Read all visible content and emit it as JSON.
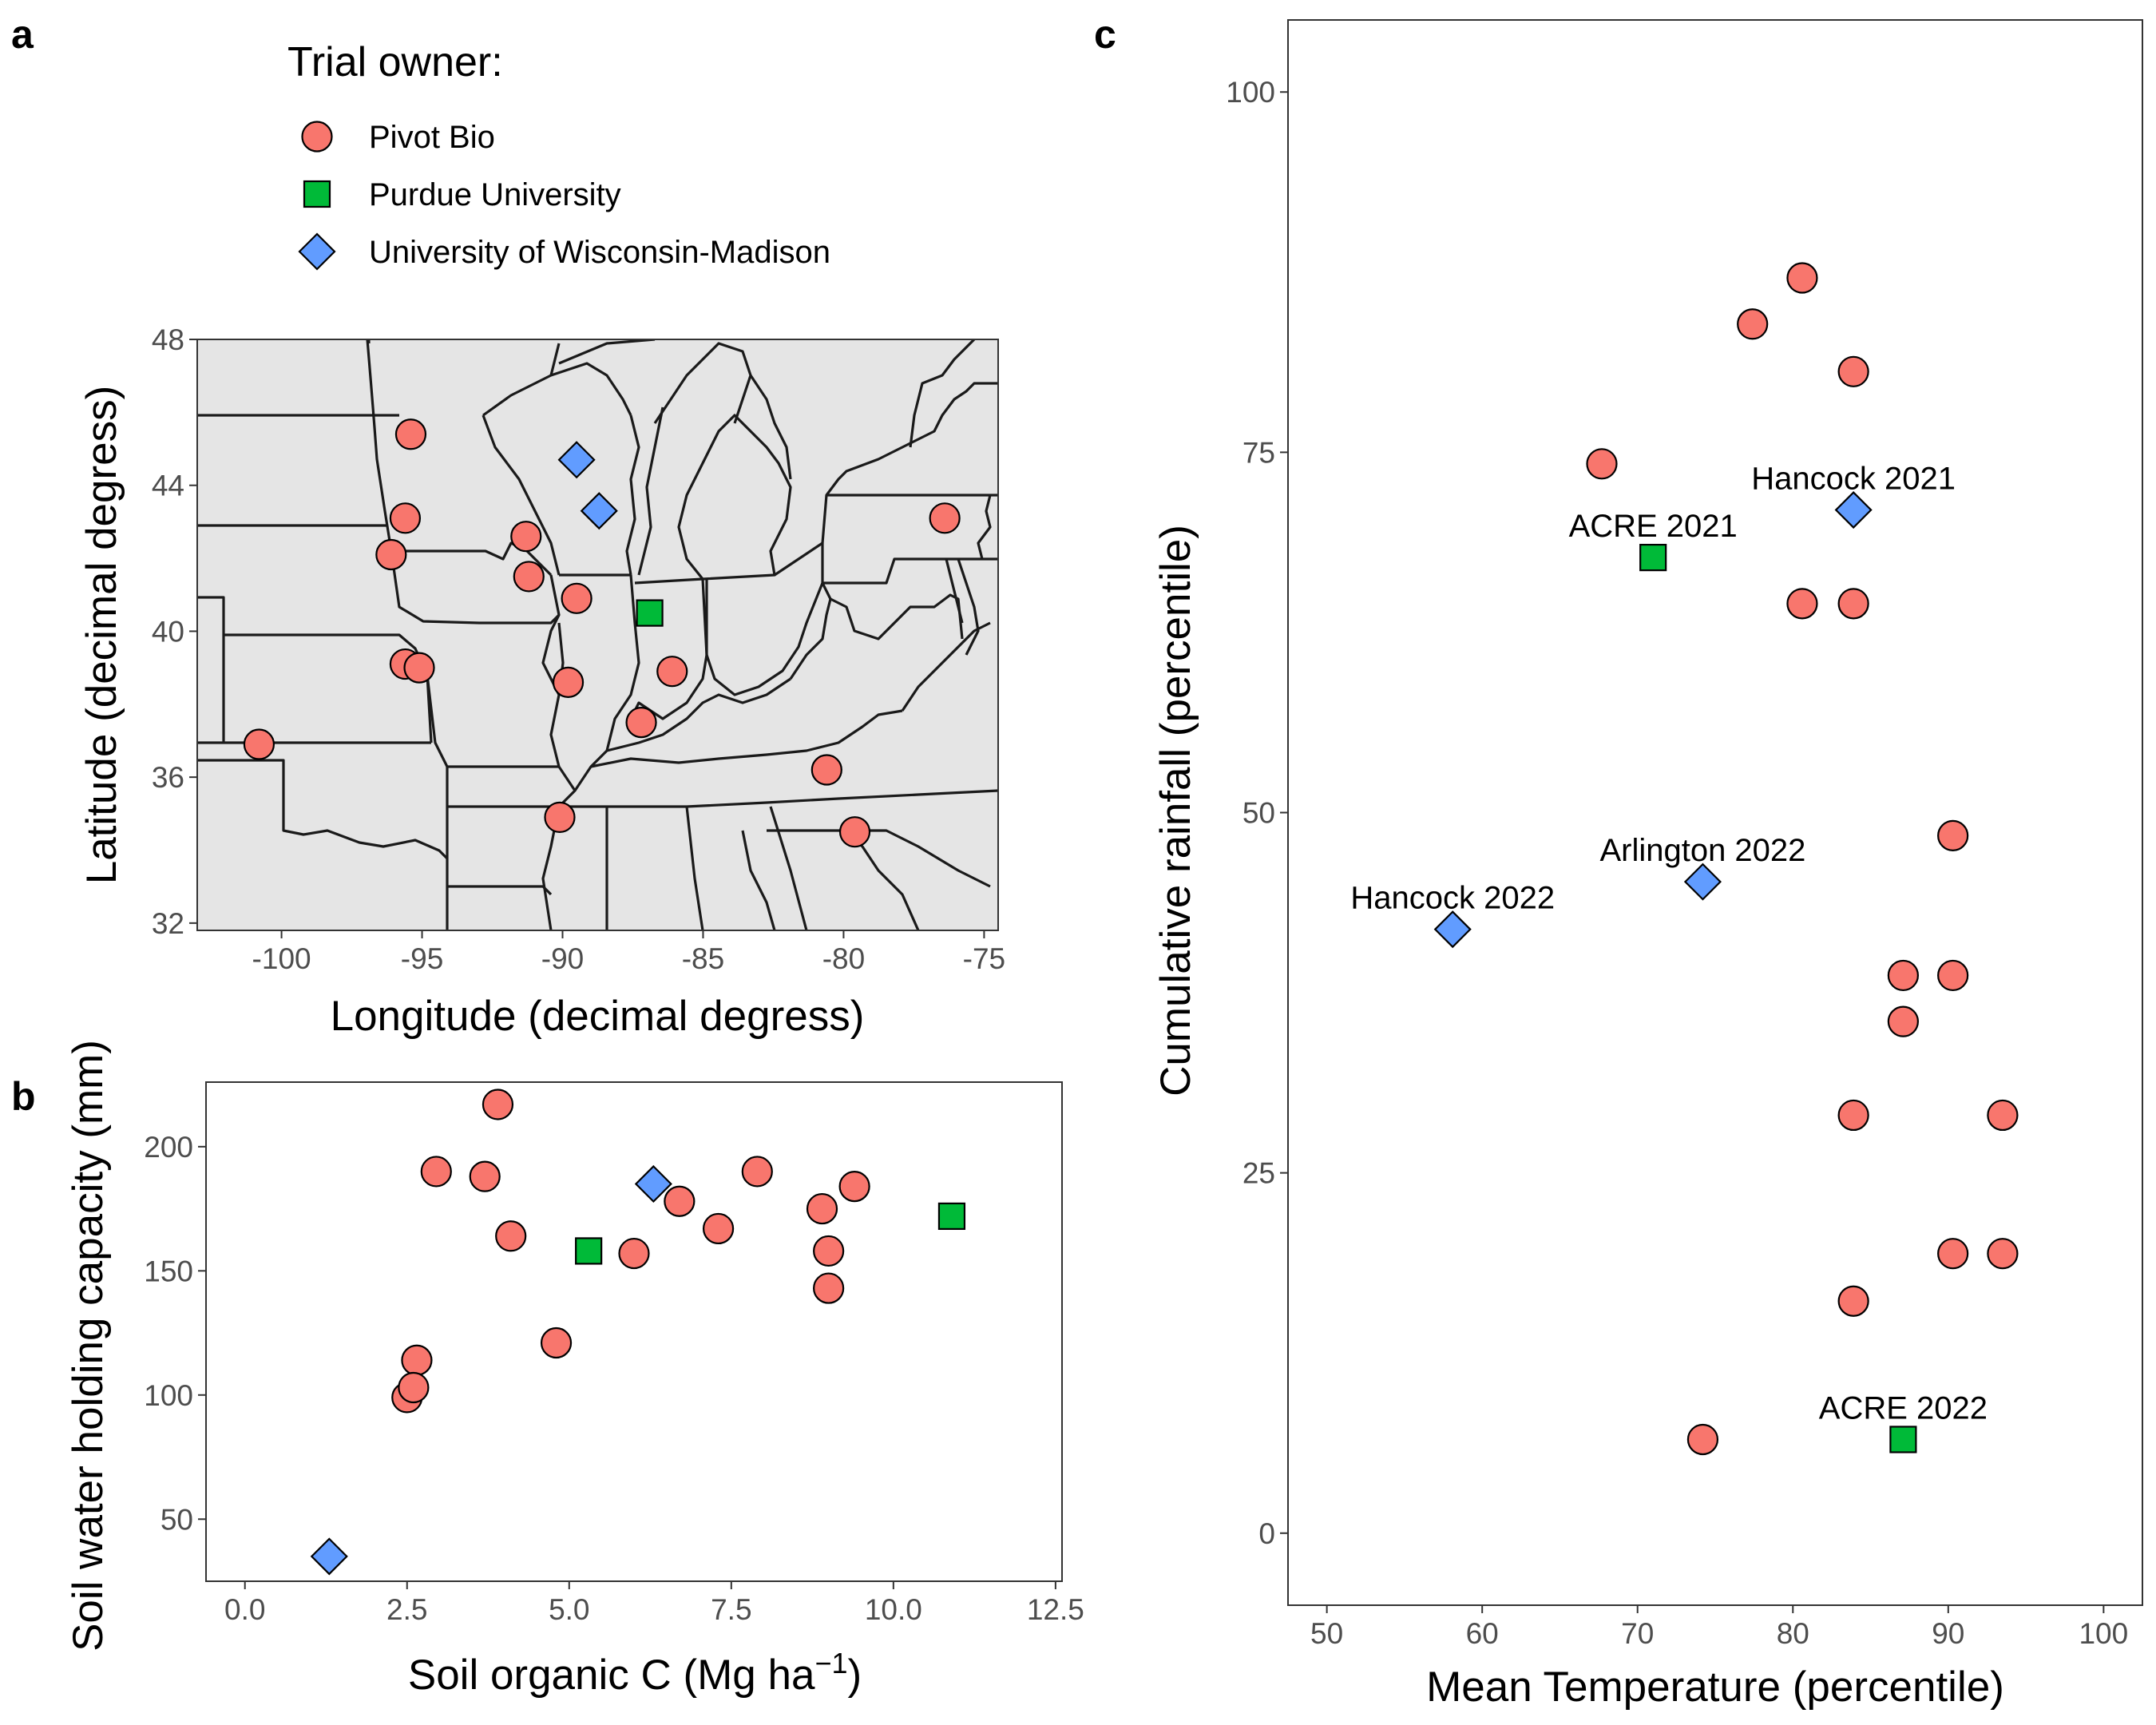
{
  "panel_labels": {
    "a": "a",
    "b": "b",
    "c": "c"
  },
  "legend": {
    "title": "Trial owner:",
    "items": [
      {
        "label": "Pivot Bio",
        "shape": "circle",
        "color": "#F8766D"
      },
      {
        "label": "Purdue University",
        "shape": "square",
        "color": "#00BA38"
      },
      {
        "label": "University of Wisconsin-Madison",
        "shape": "diamond",
        "color": "#619CFF"
      }
    ]
  },
  "chart_data": [
    {
      "panel": "a",
      "type": "scatter",
      "title": "",
      "xlabel": "Longitude (decimal degress)",
      "ylabel": "Latitude (decimal degress)",
      "xlim": [
        -103,
        -74.5
      ],
      "ylim": [
        31.8,
        48
      ],
      "xticks": [
        -100,
        -95,
        -90,
        -85,
        -80,
        -75
      ],
      "xtick_labels": [
        "-100",
        "-95",
        "-90",
        "-85",
        "-80",
        "-75"
      ],
      "yticks": [
        32,
        36,
        40,
        44,
        48
      ],
      "ytick_labels": [
        "32",
        "36",
        "40",
        "44",
        "48"
      ],
      "grid": false,
      "map_background": "US state boundaries (Midwest / Eastern US)",
      "map_fill": "#E5E5E5",
      "series": [
        {
          "name": "Pivot Bio",
          "shape": "circle",
          "color": "#F8766D",
          "points": [
            [
              -95.4,
              45.4
            ],
            [
              -95.6,
              43.1
            ],
            [
              -96.1,
              42.1
            ],
            [
              -91.3,
              42.6
            ],
            [
              -91.2,
              41.5
            ],
            [
              -89.5,
              40.9
            ],
            [
              -95.6,
              39.1
            ],
            [
              -95.1,
              39.0
            ],
            [
              -89.8,
              38.6
            ],
            [
              -86.1,
              38.9
            ],
            [
              -87.2,
              37.5
            ],
            [
              -100.8,
              36.9
            ],
            [
              -80.6,
              36.2
            ],
            [
              -90.1,
              34.9
            ],
            [
              -79.6,
              34.5
            ],
            [
              -76.4,
              43.1
            ]
          ]
        },
        {
          "name": "Purdue University",
          "shape": "square",
          "color": "#00BA38",
          "points": [
            [
              -86.9,
              40.5
            ]
          ]
        },
        {
          "name": "University of Wisconsin-Madison",
          "shape": "diamond",
          "color": "#619CFF",
          "points": [
            [
              -89.5,
              44.7
            ],
            [
              -88.7,
              43.3
            ]
          ]
        }
      ]
    },
    {
      "panel": "b",
      "type": "scatter",
      "title": "",
      "xlabel": "Soil organic C (Mg ha⁻¹)",
      "ylabel": "Soil water holding capacity (mm)",
      "xlim": [
        -0.6,
        12.6
      ],
      "ylim": [
        25,
        226
      ],
      "xticks": [
        0,
        2.5,
        5,
        7.5,
        10,
        12.5
      ],
      "xtick_labels": [
        "0.0",
        "2.5",
        "5.0",
        "7.5",
        "10.0",
        "12.5"
      ],
      "yticks": [
        50,
        100,
        150,
        200
      ],
      "ytick_labels": [
        "50",
        "100",
        "150",
        "200"
      ],
      "grid": false,
      "series": [
        {
          "name": "Pivot Bio",
          "shape": "circle",
          "color": "#F8766D",
          "points": [
            [
              3.9,
              217
            ],
            [
              2.95,
              190
            ],
            [
              3.7,
              188
            ],
            [
              4.1,
              164
            ],
            [
              2.65,
              114
            ],
            [
              2.5,
              99
            ],
            [
              2.6,
              103
            ],
            [
              4.8,
              121
            ],
            [
              6.0,
              157
            ],
            [
              6.7,
              178
            ],
            [
              7.3,
              167
            ],
            [
              7.9,
              190
            ],
            [
              8.9,
              175
            ],
            [
              9.0,
              158
            ],
            [
              9.0,
              143
            ],
            [
              9.4,
              184
            ]
          ]
        },
        {
          "name": "Purdue University",
          "shape": "square",
          "color": "#00BA38",
          "points": [
            [
              5.3,
              158
            ],
            [
              10.9,
              172
            ]
          ]
        },
        {
          "name": "University of Wisconsin-Madison",
          "shape": "diamond",
          "color": "#619CFF",
          "points": [
            [
              6.3,
              185
            ],
            [
              1.3,
              35
            ]
          ]
        }
      ]
    },
    {
      "panel": "c",
      "type": "scatter",
      "title": "",
      "xlabel": "Mean Temperature (percentile)",
      "ylabel": "Cumulative rainfall (percentile)",
      "xlim": [
        47.5,
        102.5
      ],
      "ylim": [
        -5,
        105
      ],
      "xticks": [
        50,
        60,
        70,
        80,
        90,
        100
      ],
      "xtick_labels": [
        "50",
        "60",
        "70",
        "80",
        "90",
        "100"
      ],
      "yticks": [
        0,
        25,
        50,
        75,
        100
      ],
      "ytick_labels": [
        "0",
        "25",
        "50",
        "75",
        "100"
      ],
      "grid": false,
      "series": [
        {
          "name": "Pivot Bio",
          "shape": "circle",
          "color": "#F8766D",
          "points": [
            [
              80.6,
              87.1
            ],
            [
              77.4,
              83.9
            ],
            [
              83.9,
              80.6
            ],
            [
              67.7,
              74.2
            ],
            [
              80.6,
              64.5
            ],
            [
              83.9,
              64.5
            ],
            [
              90.3,
              48.4
            ],
            [
              87.1,
              38.7
            ],
            [
              90.3,
              38.7
            ],
            [
              87.1,
              35.5
            ],
            [
              83.9,
              29.0
            ],
            [
              93.5,
              29.0
            ],
            [
              90.3,
              19.4
            ],
            [
              93.5,
              19.4
            ],
            [
              83.9,
              16.1
            ],
            [
              74.2,
              6.5
            ]
          ]
        },
        {
          "name": "Purdue University",
          "shape": "square",
          "color": "#00BA38",
          "points": [
            [
              71.0,
              67.7
            ],
            [
              87.1,
              6.5
            ]
          ]
        },
        {
          "name": "University of Wisconsin-Madison",
          "shape": "diamond",
          "color": "#619CFF",
          "points": [
            [
              83.9,
              71.0
            ],
            [
              74.2,
              45.2
            ],
            [
              58.1,
              41.9
            ]
          ]
        }
      ],
      "annotations": [
        {
          "text": "Hancock 2021",
          "x": 83.9,
          "y": 71.0
        },
        {
          "text": "ACRE 2021",
          "x": 71.0,
          "y": 67.7
        },
        {
          "text": "Arlington 2022",
          "x": 74.2,
          "y": 45.2
        },
        {
          "text": "Hancock 2022",
          "x": 58.1,
          "y": 41.9
        },
        {
          "text": "ACRE 2022",
          "x": 87.1,
          "y": 6.5
        }
      ]
    }
  ]
}
